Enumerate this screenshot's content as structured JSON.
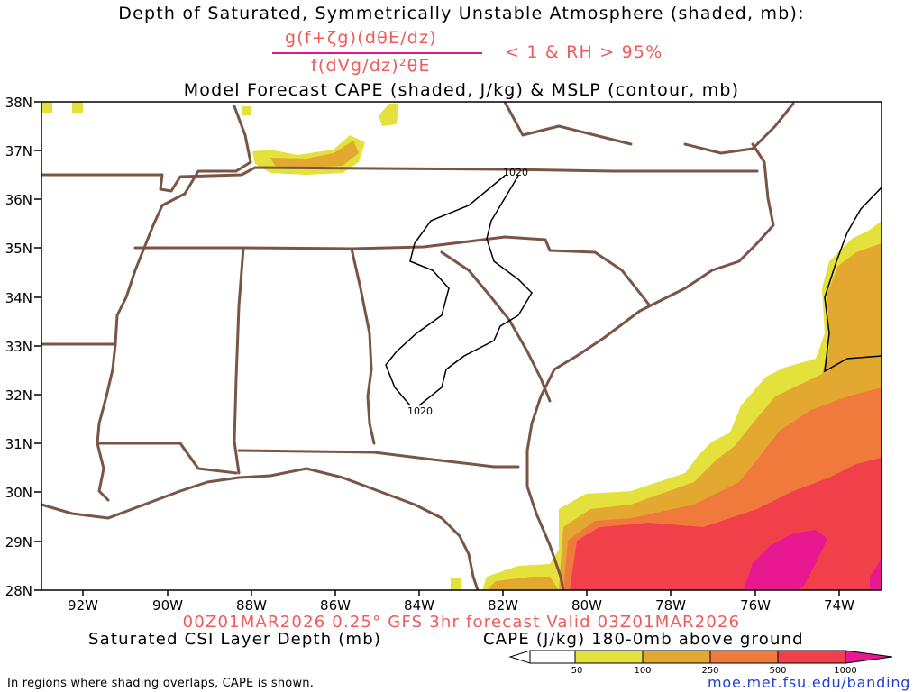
{
  "header": {
    "title_line1": "Depth of Saturated, Symmetrically Unstable Atmosphere (shaded, mb):",
    "formula_numerator": "g(f+ζg)(dθE/dz)",
    "formula_denominator": "f(dVg/dz)²θE",
    "formula_condition": "< 1 & RH > 95%",
    "title_line3": "Model Forecast CAPE (shaded, J/kg) & MSLP (contour, mb)"
  },
  "map": {
    "lat_labels": [
      "38N",
      "37N",
      "36N",
      "35N",
      "34N",
      "33N",
      "32N",
      "31N",
      "30N",
      "29N",
      "28N"
    ],
    "lon_labels": [
      "92W",
      "90W",
      "88W",
      "86W",
      "84W",
      "82W",
      "80W",
      "78W",
      "76W",
      "74W"
    ],
    "isobars": [
      {
        "label": "1020"
      },
      {
        "label": "1020"
      }
    ],
    "colors": {
      "border": "#7a5545",
      "cape_50": "#e4e03c",
      "cape_100": "#e3a82f",
      "cape_250": "#f07a3c",
      "cape_500": "#f2404a",
      "cape_1000": "#e81890"
    }
  },
  "footer": {
    "valid_line": "00Z01MAR2026 0.25° GFS 3hr forecast Valid 03Z01MAR2026",
    "left_label": "Saturated CSI Layer Depth (mb)",
    "right_label": "CAPE (J/kg) 180-0mb above ground",
    "colorbar_ticks": [
      "50",
      "100",
      "250",
      "500",
      "1000"
    ],
    "note": "In regions where shading overlaps, CAPE is shown.",
    "url": "moe.met.fsu.edu/banding"
  }
}
